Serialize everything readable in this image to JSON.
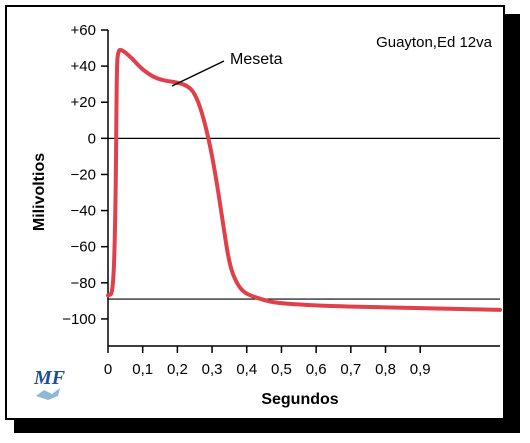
{
  "chart_data": {
    "type": "line",
    "title": "",
    "xlabel": "Segundos",
    "ylabel": "Milivoltios",
    "xlim": [
      0,
      1.13
    ],
    "ylim": [
      -115,
      60
    ],
    "x_ticks": [
      0,
      0.1,
      0.2,
      0.3,
      0.4,
      0.5,
      0.6,
      0.7,
      0.8,
      0.9
    ],
    "x_tick_labels": [
      "0",
      "0,1",
      "0,2",
      "0,3",
      "0,4",
      "0,5",
      "0,6",
      "0,7",
      "0,8",
      "0,9"
    ],
    "y_ticks": [
      60,
      40,
      20,
      0,
      -20,
      -40,
      -60,
      -80,
      -100
    ],
    "y_tick_labels": [
      "+60",
      "+40",
      "+20",
      "0",
      "−20",
      "−40",
      "−60",
      "−80",
      "−100"
    ],
    "reference_lines": [
      0,
      -89
    ],
    "annotation": "Meseta",
    "credit": "Guayton,Ed 12va",
    "grid": false,
    "series": [
      {
        "color": "#e0404a",
        "x": [
          0.0,
          0.015,
          0.022,
          0.025,
          0.03,
          0.04,
          0.06,
          0.08,
          0.1,
          0.13,
          0.16,
          0.2,
          0.23,
          0.25,
          0.27,
          0.29,
          0.31,
          0.33,
          0.35,
          0.37,
          0.39,
          0.41,
          0.44,
          0.48,
          0.55,
          0.65,
          0.8,
          1.0,
          1.13
        ],
        "y": [
          -87,
          -86,
          -40,
          40,
          49,
          49,
          46,
          42,
          38,
          34,
          32,
          31,
          29,
          25,
          15,
          0,
          -20,
          -45,
          -70,
          -80,
          -85,
          -87,
          -89,
          -91,
          -92,
          -93,
          -93.5,
          -94.5,
          -95
        ]
      }
    ]
  },
  "logo": {
    "text": "MF"
  }
}
